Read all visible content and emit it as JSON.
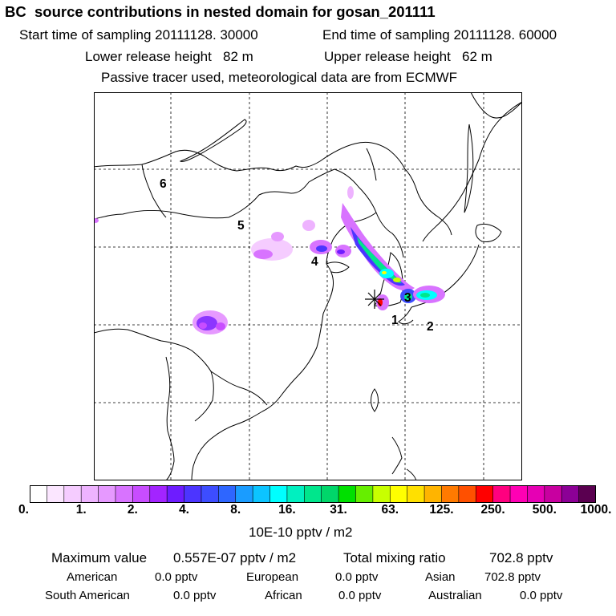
{
  "header": {
    "title": "BC  source contributions in nested domain for gosan_201111",
    "start_label": "Start time of sampling 20111128. 30000",
    "end_label": "End time of sampling 20111128. 60000",
    "lower_label": "Lower release height   82 m",
    "upper_label": "Upper release height   62 m",
    "info_line": "Passive tracer used, meteorological data are from ECMWF"
  },
  "map": {
    "region_labels": [
      "6",
      "5",
      "4",
      "1",
      "2",
      "3"
    ],
    "receptor_marker": "star-icon"
  },
  "colorbar": {
    "colors": [
      "#ffffff",
      "#fbe6ff",
      "#f5ccff",
      "#eeb3ff",
      "#e699ff",
      "#d873ff",
      "#c84dff",
      "#a324ff",
      "#6e1cff",
      "#4c35ff",
      "#3d4dff",
      "#2e66ff",
      "#1a9cff",
      "#0cc4ff",
      "#00ffff",
      "#00f0c0",
      "#00e68c",
      "#00d66a",
      "#00e000",
      "#66ee00",
      "#c8ff00",
      "#ffff00",
      "#ffe000",
      "#ffb400",
      "#ff7a00",
      "#ff5000",
      "#ff0000",
      "#ff007f",
      "#ff00b4",
      "#e600b4",
      "#c800a0",
      "#8c0096",
      "#5a0050"
    ],
    "tick_labels": [
      "0.",
      "1.",
      "2.",
      "4.",
      "8.",
      "16.",
      "31.",
      "63.",
      "125.",
      "250.",
      "500.",
      "1000."
    ],
    "unit": "10E-10 pptv / m2"
  },
  "stats": {
    "max_label": "Maximum value",
    "max_value": "0.557E-07 pptv / m2",
    "total_label": "Total mixing ratio",
    "total_value": "702.8 pptv",
    "regions": {
      "american": {
        "label": "American",
        "value": "0.0 pptv"
      },
      "european": {
        "label": "European",
        "value": "0.0 pptv"
      },
      "asian": {
        "label": "Asian",
        "value": "702.8 pptv"
      },
      "south_american": {
        "label": "South American",
        "value": "0.0 pptv"
      },
      "african": {
        "label": "African",
        "value": "0.0 pptv"
      },
      "australian": {
        "label": "Australian",
        "value": "0.0 pptv"
      }
    }
  }
}
